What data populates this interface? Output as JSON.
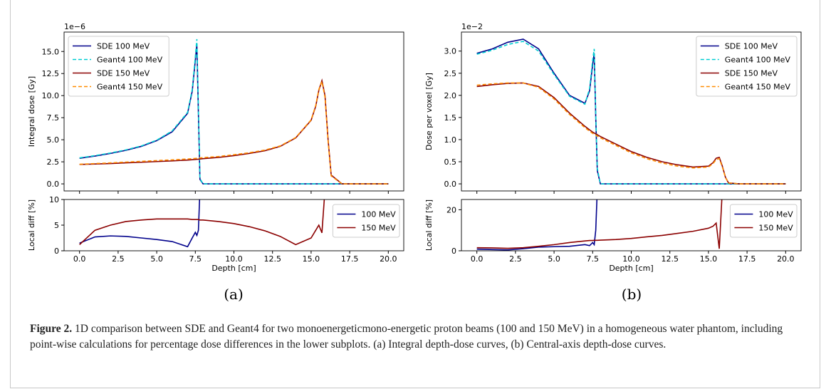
{
  "chart_data": [
    {
      "type": "line",
      "panel": "a",
      "ylabel": "Integral dose [Gy]",
      "offset_text": "1e−6",
      "x": [
        0,
        1,
        2,
        3,
        4,
        5,
        6,
        7,
        7.3,
        7.5,
        7.6,
        7.7,
        7.8,
        8,
        9,
        10,
        11,
        12,
        13,
        14,
        15,
        15.3,
        15.5,
        15.7,
        15.9,
        16.1,
        16.3,
        17,
        18,
        19,
        20
      ],
      "xlim": [
        -1,
        21
      ],
      "xticks": [
        0,
        2.5,
        5,
        7.5,
        10,
        12.5,
        15,
        17.5,
        20
      ],
      "ylim": [
        -0.8,
        17.2
      ],
      "yticks": [
        {
          "value": 0,
          "label": "0.0"
        },
        2.5,
        {
          "value": 5,
          "label": "5.0"
        },
        7.5,
        {
          "value": 10,
          "label": "10.0"
        },
        12.5,
        {
          "value": 15,
          "label": "15.0"
        }
      ],
      "legend": "upper left",
      "series": [
        {
          "name": "SDE 100 MeV",
          "color": "#00008b",
          "linestyle": "solid",
          "values": [
            2.9,
            3.15,
            3.45,
            3.8,
            4.25,
            4.9,
            5.9,
            8.0,
            10.5,
            14.0,
            15.8,
            8.0,
            0.5,
            0,
            0,
            0,
            0,
            0,
            0,
            0,
            0,
            0,
            0,
            0,
            0,
            0,
            0,
            0,
            0,
            0,
            0
          ]
        },
        {
          "name": "Geant4 100 MeV",
          "color": "#00ced1",
          "linestyle": "dashed",
          "values": [
            2.95,
            3.2,
            3.5,
            3.85,
            4.3,
            4.95,
            6.0,
            8.1,
            10.7,
            14.4,
            16.4,
            8.5,
            0.6,
            0,
            0,
            0,
            0,
            0,
            0,
            0,
            0,
            0,
            0,
            0,
            0,
            0,
            0,
            0,
            0,
            0,
            0
          ]
        },
        {
          "name": "SDE 150 MeV",
          "color": "#8b0000",
          "linestyle": "solid",
          "values": [
            2.2,
            2.25,
            2.3,
            2.38,
            2.45,
            2.53,
            2.6,
            2.7,
            2.74,
            2.77,
            2.79,
            2.8,
            2.82,
            2.86,
            3.0,
            3.2,
            3.45,
            3.75,
            4.25,
            5.2,
            7.2,
            8.8,
            10.6,
            11.7,
            10.0,
            5.0,
            1.0,
            0,
            0,
            0,
            0
          ]
        },
        {
          "name": "Geant4 150 MeV",
          "color": "#ff8c00",
          "linestyle": "dashed",
          "values": [
            2.22,
            2.3,
            2.38,
            2.47,
            2.55,
            2.64,
            2.72,
            2.82,
            2.86,
            2.89,
            2.91,
            2.92,
            2.94,
            2.98,
            3.1,
            3.3,
            3.53,
            3.83,
            4.3,
            5.25,
            7.25,
            8.9,
            10.7,
            11.6,
            9.8,
            4.8,
            0.9,
            0,
            0,
            0,
            0
          ]
        }
      ]
    },
    {
      "type": "line",
      "panel": "a",
      "xlabel": "Depth [cm]",
      "ylabel": "Local diff [%]",
      "x": [
        0,
        1,
        2,
        3,
        4,
        5,
        6,
        7,
        7.3,
        7.5,
        7.6,
        7.7,
        7.8,
        8,
        9,
        10,
        11,
        12,
        13,
        14,
        15,
        15.3,
        15.5,
        15.7,
        15.9,
        16.1,
        16.3,
        17,
        18,
        19,
        20
      ],
      "xlim": [
        -1,
        21
      ],
      "xticks": [
        {
          "value": 0,
          "label": "0.0"
        },
        2.5,
        {
          "value": 5,
          "label": "5.0"
        },
        7.5,
        {
          "value": 10,
          "label": "10.0"
        },
        12.5,
        {
          "value": 15,
          "label": "15.0"
        },
        17.5,
        {
          "value": 20,
          "label": "20.0"
        }
      ],
      "ylim": [
        0,
        10
      ],
      "yticks": [
        0,
        5,
        10
      ],
      "legend": "center right",
      "series": [
        {
          "name": "100 MeV",
          "color": "#00008b",
          "linestyle": "solid",
          "values": [
            1.5,
            2.7,
            2.9,
            2.8,
            2.5,
            2.2,
            1.8,
            0.8,
            2.5,
            3.6,
            3.0,
            4.0,
            12,
            null,
            null,
            null,
            null,
            null,
            null,
            null,
            null,
            null,
            null,
            null,
            null,
            null,
            null,
            null,
            null,
            null,
            null
          ]
        },
        {
          "name": "150 MeV",
          "color": "#8b0000",
          "linestyle": "solid",
          "values": [
            1.2,
            4.0,
            5.0,
            5.7,
            6.0,
            6.2,
            6.2,
            6.2,
            6.1,
            6.1,
            6.1,
            6.1,
            6.0,
            6.0,
            5.7,
            5.3,
            4.7,
            3.9,
            2.8,
            1.2,
            2.5,
            4.0,
            5.0,
            3.5,
            12,
            null,
            null,
            null,
            null,
            null,
            null
          ]
        }
      ]
    },
    {
      "type": "line",
      "panel": "b",
      "ylabel": "Dose per voxel [Gy]",
      "offset_text": "1e−2",
      "x": [
        0,
        1,
        2,
        3,
        4,
        5,
        6,
        7,
        7.3,
        7.5,
        7.6,
        7.7,
        7.8,
        8,
        9,
        10,
        11,
        12,
        13,
        14,
        15,
        15.3,
        15.5,
        15.7,
        15.9,
        16.1,
        16.3,
        17,
        18,
        19,
        20
      ],
      "xlim": [
        -1,
        21
      ],
      "xticks": [
        0,
        2.5,
        5,
        7.5,
        10,
        12.5,
        15,
        17.5,
        20
      ],
      "ylim": [
        -0.16,
        3.43
      ],
      "yticks": [
        {
          "value": 0,
          "label": "0.0"
        },
        0.5,
        {
          "value": 1,
          "label": "1.0"
        },
        1.5,
        {
          "value": 2,
          "label": "2.0"
        },
        2.5,
        {
          "value": 3,
          "label": "3.0"
        }
      ],
      "legend": "upper right",
      "series": [
        {
          "name": "SDE 100 MeV",
          "color": "#00008b",
          "linestyle": "solid",
          "values": [
            2.95,
            3.05,
            3.2,
            3.27,
            3.05,
            2.5,
            2.0,
            1.82,
            2.1,
            2.7,
            2.95,
            1.5,
            0.3,
            0,
            0,
            0,
            0,
            0,
            0,
            0,
            0,
            0,
            0,
            0,
            0,
            0,
            0,
            0,
            0,
            0,
            0
          ]
        },
        {
          "name": "Geant4 100 MeV",
          "color": "#00ced1",
          "linestyle": "dashed",
          "values": [
            2.93,
            3.02,
            3.15,
            3.22,
            3.0,
            2.47,
            1.98,
            1.8,
            2.15,
            2.8,
            3.05,
            1.6,
            0.35,
            0,
            0,
            0,
            0,
            0,
            0,
            0,
            0,
            0,
            0,
            0,
            0,
            0,
            0,
            0,
            0,
            0,
            0
          ]
        },
        {
          "name": "SDE 150 MeV",
          "color": "#8b0000",
          "linestyle": "solid",
          "values": [
            2.2,
            2.24,
            2.27,
            2.28,
            2.2,
            1.95,
            1.6,
            1.3,
            1.22,
            1.17,
            1.15,
            1.13,
            1.11,
            1.07,
            0.9,
            0.73,
            0.6,
            0.5,
            0.43,
            0.38,
            0.4,
            0.48,
            0.58,
            0.6,
            0.4,
            0.15,
            0.02,
            0,
            0,
            0,
            0
          ]
        },
        {
          "name": "Geant4 150 MeV",
          "color": "#ff8c00",
          "linestyle": "dashed",
          "values": [
            2.23,
            2.26,
            2.28,
            2.28,
            2.18,
            1.92,
            1.57,
            1.27,
            1.19,
            1.14,
            1.12,
            1.1,
            1.08,
            1.04,
            0.87,
            0.7,
            0.57,
            0.47,
            0.4,
            0.36,
            0.38,
            0.46,
            0.55,
            0.57,
            0.38,
            0.14,
            0.02,
            0,
            0,
            0,
            0
          ]
        }
      ]
    },
    {
      "type": "line",
      "panel": "b",
      "xlabel": "Depth [cm]",
      "ylabel": "Local diff [%]",
      "x": [
        0,
        1,
        2,
        3,
        4,
        5,
        6,
        7,
        7.3,
        7.5,
        7.6,
        7.7,
        7.8,
        8,
        9,
        10,
        11,
        12,
        13,
        14,
        15,
        15.3,
        15.5,
        15.7,
        15.9,
        16.1,
        16.3,
        17,
        18,
        19,
        20
      ],
      "xlim": [
        -1,
        21
      ],
      "xticks": [
        {
          "value": 0,
          "label": "0.0"
        },
        2.5,
        {
          "value": 5,
          "label": "5.0"
        },
        7.5,
        {
          "value": 10,
          "label": "10.0"
        },
        12.5,
        {
          "value": 15,
          "label": "15.0"
        },
        17.5,
        {
          "value": 20,
          "label": "20.0"
        }
      ],
      "ylim": [
        0,
        25
      ],
      "yticks": [
        0,
        20
      ],
      "legend": "center right",
      "series": [
        {
          "name": "100 MeV",
          "color": "#00008b",
          "linestyle": "solid",
          "values": [
            0.8,
            0.6,
            0.4,
            1.0,
            1.8,
            2.0,
            2.2,
            3.0,
            2.5,
            4.0,
            3.0,
            10,
            30,
            null,
            null,
            null,
            null,
            null,
            null,
            null,
            null,
            null,
            null,
            null,
            null,
            null,
            null,
            null,
            null,
            null,
            null
          ]
        },
        {
          "name": "150 MeV",
          "color": "#8b0000",
          "linestyle": "solid",
          "values": [
            1.5,
            1.4,
            1.2,
            1.5,
            2.2,
            3.0,
            4.0,
            4.8,
            5.0,
            5.0,
            5.1,
            5.1,
            5.1,
            5.2,
            5.5,
            6.0,
            6.8,
            7.5,
            8.5,
            9.5,
            11,
            12,
            13.5,
            1.0,
            30,
            null,
            null,
            null,
            null,
            null,
            null
          ]
        }
      ]
    }
  ],
  "panel_labels": [
    "(a)",
    "(b)"
  ],
  "caption": {
    "label": "Figure 2.",
    "text": "1D comparison between SDE and Geant4 for two monoenergeticmono-energetic proton beams (100 and 150 MeV) in a homogeneous water phantom, including point-wise calculations for percentage dose differences in the lower subplots. (a) Integral depth-dose curves, (b) Central-axis depth-dose curves."
  }
}
